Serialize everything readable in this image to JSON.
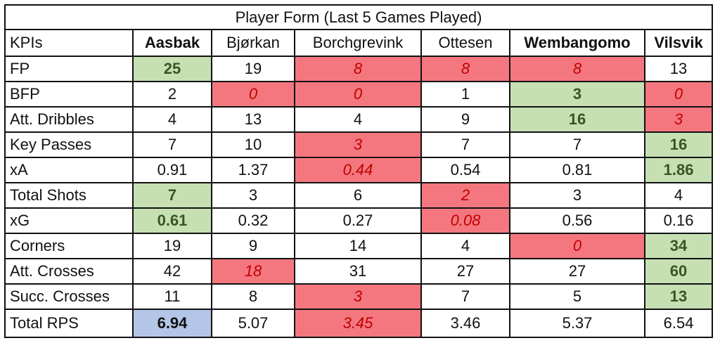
{
  "title": "Player Form (Last 5 Games Played)",
  "header": {
    "kpi_label": "KPIs",
    "players": [
      {
        "name": "Aasbak",
        "bold": true
      },
      {
        "name": "Bjørkan",
        "bold": false
      },
      {
        "name": "Borchgrevink",
        "bold": false
      },
      {
        "name": "Ottesen",
        "bold": false
      },
      {
        "name": "Wembangomo",
        "bold": true
      },
      {
        "name": "Vilsvik",
        "bold": true
      }
    ]
  },
  "rows": [
    {
      "kpi": "FP",
      "values": [
        "25",
        "19",
        "8",
        "8",
        "8",
        "13"
      ],
      "styles": [
        "good",
        "",
        "bad",
        "bad",
        "bad",
        ""
      ]
    },
    {
      "kpi": "BFP",
      "values": [
        "2",
        "0",
        "0",
        "1",
        "3",
        "0"
      ],
      "styles": [
        "",
        "bad",
        "bad",
        "",
        "good",
        "bad"
      ]
    },
    {
      "kpi": "Att. Dribbles",
      "values": [
        "4",
        "13",
        "4",
        "9",
        "16",
        "3"
      ],
      "styles": [
        "",
        "",
        "",
        "",
        "good",
        "bad"
      ]
    },
    {
      "kpi": "Key Passes",
      "values": [
        "7",
        "10",
        "3",
        "7",
        "7",
        "16"
      ],
      "styles": [
        "",
        "",
        "bad",
        "",
        "",
        "good"
      ]
    },
    {
      "kpi": "xA",
      "values": [
        "0.91",
        "1.37",
        "0.44",
        "0.54",
        "0.81",
        "1.86"
      ],
      "styles": [
        "",
        "",
        "bad",
        "",
        "",
        "good"
      ]
    },
    {
      "kpi": "Total Shots",
      "values": [
        "7",
        "3",
        "6",
        "2",
        "3",
        "4"
      ],
      "styles": [
        "good",
        "",
        "",
        "bad",
        "",
        ""
      ]
    },
    {
      "kpi": "xG",
      "values": [
        "0.61",
        "0.32",
        "0.27",
        "0.08",
        "0.56",
        "0.16"
      ],
      "styles": [
        "good",
        "",
        "",
        "bad",
        "",
        ""
      ]
    },
    {
      "kpi": "Corners",
      "values": [
        "19",
        "9",
        "14",
        "4",
        "0",
        "34"
      ],
      "styles": [
        "",
        "",
        "",
        "",
        "bad",
        "good"
      ]
    },
    {
      "kpi": "Att. Crosses",
      "values": [
        "42",
        "18",
        "31",
        "27",
        "27",
        "60"
      ],
      "styles": [
        "",
        "bad",
        "",
        "",
        "",
        "good"
      ]
    },
    {
      "kpi": "Succ. Crosses",
      "values": [
        "11",
        "8",
        "3",
        "7",
        "5",
        "13"
      ],
      "styles": [
        "",
        "",
        "bad",
        "",
        "",
        "good"
      ]
    },
    {
      "kpi": "Total RPS",
      "values": [
        "6.94",
        "5.07",
        "3.45",
        "3.46",
        "5.37",
        "6.54"
      ],
      "styles": [
        "best",
        "",
        "bad",
        "",
        "",
        ""
      ]
    }
  ],
  "colors": {
    "good_fill": "#c6e0b4",
    "good_text": "#375623",
    "bad_fill": "#f4777f",
    "bad_text": "#c00000",
    "best_fill": "#b4c6e7"
  }
}
